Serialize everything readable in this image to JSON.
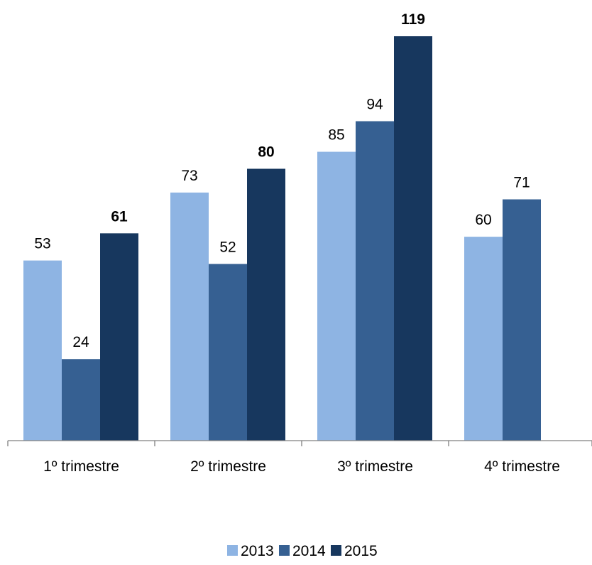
{
  "chart_data": {
    "type": "bar",
    "title": "",
    "xlabel": "",
    "ylabel": "",
    "categories": [
      "1º trimestre",
      "2º trimestre",
      "3º trimestre",
      "4º trimestre"
    ],
    "series": [
      {
        "name": "2013",
        "values": [
          53,
          73,
          85,
          60
        ],
        "color": "#8EB4E3"
      },
      {
        "name": "2014",
        "values": [
          24,
          52,
          94,
          71
        ],
        "color": "#366092"
      },
      {
        "name": "2015",
        "values": [
          61,
          80,
          119,
          null
        ],
        "color": "#17375E"
      }
    ],
    "bold_labels_series": [
      "2015"
    ],
    "ylim": [
      0,
      119
    ],
    "grid": false,
    "legend": "bottom",
    "axis_color": "#808080",
    "label_color": "#000000"
  }
}
